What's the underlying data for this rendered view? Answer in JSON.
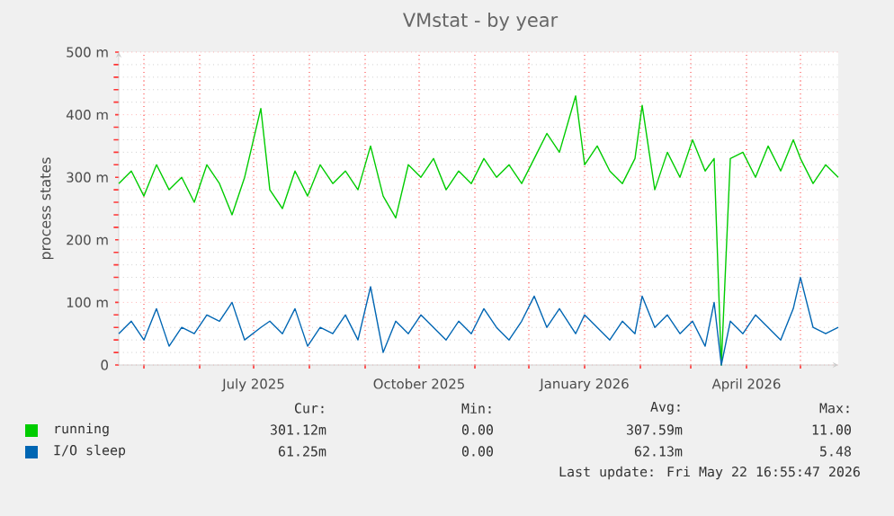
{
  "chart_data": {
    "type": "line",
    "title": "VMstat - by year",
    "ylabel": "process states",
    "x": [
      "2025-04-17",
      "2025-04-24",
      "2025-05-01",
      "2025-05-08",
      "2025-05-15",
      "2025-05-22",
      "2025-05-29",
      "2025-06-05",
      "2025-06-12",
      "2025-06-19",
      "2025-06-26",
      "2025-07-05",
      "2025-07-10",
      "2025-07-17",
      "2025-07-24",
      "2025-07-31",
      "2025-08-07",
      "2025-08-14",
      "2025-08-21",
      "2025-08-28",
      "2025-09-04",
      "2025-09-11",
      "2025-09-18",
      "2025-09-25",
      "2025-10-02",
      "2025-10-09",
      "2025-10-16",
      "2025-10-23",
      "2025-10-30",
      "2025-11-06",
      "2025-11-13",
      "2025-11-20",
      "2025-11-27",
      "2025-12-04",
      "2025-12-11",
      "2025-12-18",
      "2025-12-27",
      "2026-01-01",
      "2026-01-08",
      "2026-01-15",
      "2026-01-22",
      "2026-01-29",
      "2026-02-02",
      "2026-02-09",
      "2026-02-16",
      "2026-02-23",
      "2026-03-02",
      "2026-03-09",
      "2026-03-14",
      "2026-03-18",
      "2026-03-23",
      "2026-03-30",
      "2026-04-06",
      "2026-04-13",
      "2026-04-20",
      "2026-04-27",
      "2026-05-01",
      "2026-05-08",
      "2026-05-15",
      "2026-05-22"
    ],
    "series": [
      {
        "name": "running",
        "color": "#00cc00",
        "values": [
          290,
          310,
          270,
          320,
          280,
          300,
          260,
          320,
          290,
          240,
          300,
          410,
          280,
          250,
          310,
          270,
          320,
          290,
          310,
          280,
          350,
          270,
          235,
          320,
          300,
          330,
          280,
          310,
          290,
          330,
          300,
          320,
          290,
          330,
          370,
          340,
          430,
          320,
          350,
          310,
          290,
          330,
          415,
          280,
          340,
          300,
          360,
          310,
          330,
          0,
          330,
          340,
          300,
          350,
          310,
          360,
          330,
          290,
          320,
          300
        ]
      },
      {
        "name": "I/O sleep",
        "color": "#0066b3",
        "values": [
          50,
          70,
          40,
          90,
          30,
          60,
          50,
          80,
          70,
          100,
          40,
          60,
          70,
          50,
          90,
          30,
          60,
          50,
          80,
          40,
          125,
          20,
          70,
          50,
          80,
          60,
          40,
          70,
          50,
          90,
          60,
          40,
          70,
          110,
          60,
          90,
          50,
          80,
          60,
          40,
          70,
          50,
          110,
          60,
          80,
          50,
          70,
          30,
          100,
          0,
          70,
          50,
          80,
          60,
          40,
          90,
          140,
          60,
          50,
          60
        ]
      }
    ],
    "xlim": [
      "2025-04-17",
      "2026-05-22"
    ],
    "xticks": [
      {
        "value": "2025-05-01",
        "label": null
      },
      {
        "value": "2025-06-01",
        "label": null
      },
      {
        "value": "2025-07-01",
        "label": "July 2025"
      },
      {
        "value": "2025-08-01",
        "label": null
      },
      {
        "value": "2025-09-01",
        "label": null
      },
      {
        "value": "2025-10-01",
        "label": "October 2025"
      },
      {
        "value": "2025-11-01",
        "label": null
      },
      {
        "value": "2025-12-01",
        "label": null
      },
      {
        "value": "2026-01-01",
        "label": "January 2026"
      },
      {
        "value": "2026-02-01",
        "label": null
      },
      {
        "value": "2026-03-01",
        "label": null
      },
      {
        "value": "2026-04-01",
        "label": "April 2026"
      },
      {
        "value": "2026-05-01",
        "label": null
      }
    ],
    "ylim": [
      0,
      500
    ],
    "yticks": [
      0,
      {
        "value": 100,
        "label": "100 m"
      },
      {
        "value": 200,
        "label": "200 m"
      },
      {
        "value": 300,
        "label": "300 m"
      },
      {
        "value": 400,
        "label": "400 m"
      },
      {
        "value": 500,
        "label": "500 m"
      }
    ],
    "grid": true,
    "legend": "bottom",
    "annotations": [
      "Cur:",
      "Min:",
      "Avg:",
      "Max:",
      "301.12m",
      "0.00",
      "307.59m",
      "11.00",
      "61.25m",
      "0.00",
      "62.13m",
      "5.48",
      "Last update: Fri May 22 16:55:47 2026"
    ]
  }
}
